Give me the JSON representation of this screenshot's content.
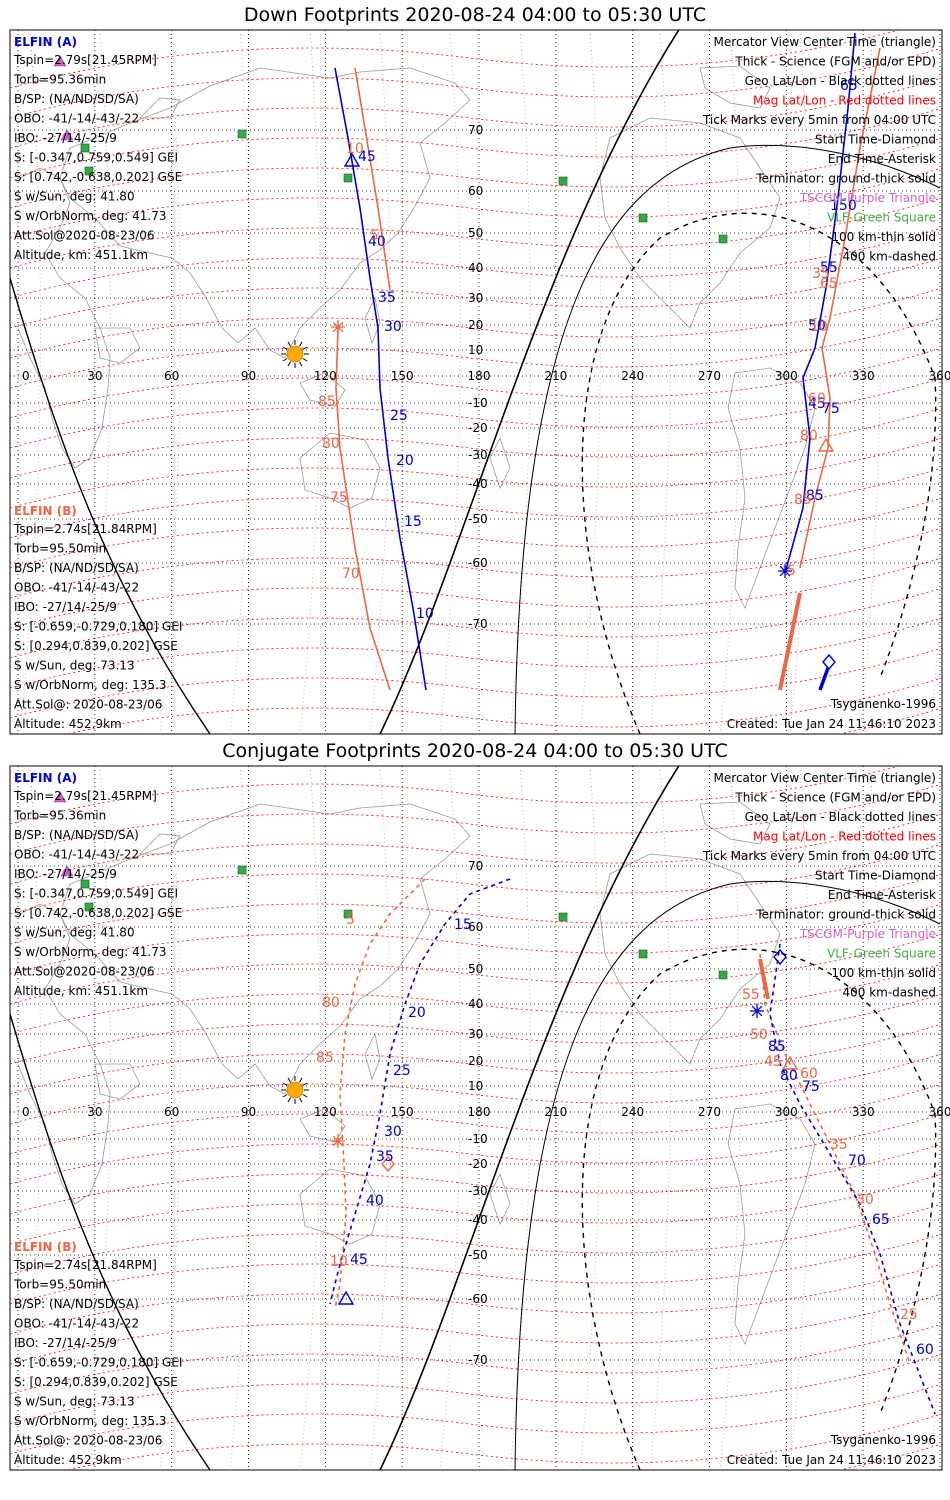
{
  "panels": [
    {
      "title": "Down Footprints 2020-08-24 04:00 to 05:30 UTC",
      "elfin_a": {
        "label": "ELFIN (A)",
        "lines": [
          "Tspin=2.79s[21.45RPM]",
          "Torb=95.36min",
          "B/SP: (NA/ND/SD/SA)",
          "OBO: -41/-14/-43/-22",
          "IBO: -27/14/-25/9",
          "S: [-0.347,0.759,0.549] GEI",
          "S: [0.742,-0.638,0.202] GSE",
          "S w/Sun, deg: 41.80",
          "S w/OrbNorm, deg: 41.73",
          "Att.Sol@2020-08-23/06",
          "Altitude, km: 451.1km"
        ]
      },
      "elfin_b": {
        "label": "ELFIN (B)",
        "lines": [
          "Tspin=2.74s[21.84RPM]",
          "Torb=95.50min",
          "B/SP: (NA/ND/SD/SA)",
          "OBO: -41/-14/-43/-22",
          "IBO: -27/14/-25/9",
          "S: [-0.659,-0.729,0.180] GEI",
          "S: [0.294,0.839,0.202] GSE",
          "S w/Sun, deg: 73.13",
          "S w/OrbNorm, deg: 135.3",
          "Att.Sol@: 2020-08-23/06",
          "Altitude: 452.9km"
        ]
      },
      "legend": [
        {
          "text": "Mercator View Center Time (triangle)",
          "color": "#000000"
        },
        {
          "text": "Thick - Science (FGM and/or EPD)",
          "color": "#000000"
        },
        {
          "text": "Geo Lat/Lon - Black dotted lines",
          "color": "#000000"
        },
        {
          "text": "Mag Lat/Lon - Red dotted lines",
          "color": "#ff0000"
        },
        {
          "text": "Tick Marks every 5min from 04:00 UTC",
          "color": "#000000"
        },
        {
          "text": "Start Time-Diamond",
          "color": "#000000"
        },
        {
          "text": "End Time-Asterisk",
          "color": "#000000"
        },
        {
          "text": "Terminator: ground-thick solid",
          "color": "#000000"
        },
        {
          "text": "TSCGM-Purple Triangle",
          "color": "#cc66cc"
        },
        {
          "text": "VLF-Green Square",
          "color": "#44aa44"
        },
        {
          "text": "100 km-thin solid",
          "color": "#000000"
        },
        {
          "text": "400 km-dashed",
          "color": "#000000"
        }
      ],
      "model": "Tsyganenko-1996",
      "created": "Created: Tue Jan 24 11:46:10 2023",
      "lon_ticks": [
        "0",
        "30",
        "60",
        "90",
        "120",
        "150",
        "180",
        "210",
        "240",
        "270",
        "300",
        "330",
        "360"
      ],
      "lat_ticks": [
        "70",
        "60",
        "50",
        "40",
        "30",
        "20",
        "10",
        "-10",
        "-20",
        "-30",
        "-40",
        "-50",
        "-60",
        "-70"
      ],
      "track_labels_blue": [
        "45",
        "40",
        "35",
        "30",
        "25",
        "20",
        "15",
        "10",
        "65",
        "150",
        "55",
        "50",
        "45",
        "75",
        "85"
      ],
      "track_labels_red": [
        "10",
        "5",
        "85",
        "80",
        "75",
        "70",
        "35",
        "65",
        "10",
        "60",
        "80",
        "85",
        "5"
      ]
    },
    {
      "title": "Conjugate Footprints 2020-08-24 04:00 to 05:30 UTC",
      "elfin_a": {
        "label": "ELFIN (A)",
        "lines": [
          "Tspin=2.79s[21.45RPM]",
          "Torb=95.36min",
          "B/SP: (NA/ND/SD/SA)",
          "OBO: -41/-14/-43/-22",
          "IBO: -27/14/-25/9",
          "S: [-0.347,0.759,0.549] GEI",
          "S: [0.742,-0.638,0.202] GSE",
          "S w/Sun, deg: 41.80",
          "S w/OrbNorm, deg: 41.73",
          "Att.Sol@2020-08-23/06",
          "Altitude, km: 451.1km"
        ]
      },
      "elfin_b": {
        "label": "ELFIN (B)",
        "lines": [
          "Tspin=2.74s[21.84RPM]",
          "Torb=95.50min",
          "B/SP: (NA/ND/SD/SA)",
          "OBO: -41/-14/-43/-22",
          "IBO: -27/14/-25/9",
          "S: [-0.659,-0.729,0.180] GEI",
          "S: [0.294,0.839,0.202] GSE",
          "S w/Sun, deg: 73.13",
          "S w/OrbNorm, deg: 135.3",
          "Att.Sol@: 2020-08-23/06",
          "Altitude: 452.9km"
        ]
      },
      "legend": [
        {
          "text": "Mercator View Center Time (triangle)",
          "color": "#000000"
        },
        {
          "text": "Thick - Science (FGM and/or EPD)",
          "color": "#000000"
        },
        {
          "text": "Geo Lat/Lon - Black dotted lines",
          "color": "#000000"
        },
        {
          "text": "Mag Lat/Lon - Red dotted lines",
          "color": "#ff0000"
        },
        {
          "text": "Tick Marks every 5min from 04:00 UTC",
          "color": "#000000"
        },
        {
          "text": "Start Time-Diamond",
          "color": "#000000"
        },
        {
          "text": "End Time-Asterisk",
          "color": "#000000"
        },
        {
          "text": "Terminator: ground-thick solid",
          "color": "#000000"
        },
        {
          "text": "TSCGM-Purple Triangle",
          "color": "#cc66cc"
        },
        {
          "text": "VLF-Green Square",
          "color": "#44aa44"
        },
        {
          "text": "100 km-thin solid",
          "color": "#000000"
        },
        {
          "text": "400 km-dashed",
          "color": "#000000"
        }
      ],
      "model": "Tsyganenko-1996",
      "created": "Created: Tue Jan 24 11:46:10 2023",
      "lon_ticks": [
        "0",
        "30",
        "60",
        "90",
        "120",
        "150",
        "180",
        "210",
        "240",
        "270",
        "300",
        "330",
        "360"
      ],
      "lat_ticks": [
        "70",
        "60",
        "50",
        "40",
        "30",
        "20",
        "10",
        "-10",
        "-20",
        "-30",
        "-40",
        "-50",
        "-60",
        "-70"
      ],
      "track_labels_blue": [
        "15",
        "20",
        "25",
        "30",
        "35",
        "40",
        "45",
        "85",
        "80",
        "75",
        "70",
        "65",
        "60"
      ],
      "track_labels_red": [
        "5",
        "80",
        "85",
        "10",
        "55",
        "50",
        "45",
        "60",
        "35",
        "30",
        "25"
      ]
    }
  ],
  "colors": {
    "elfin_a": "#0000cc",
    "elfin_b": "#ee6644",
    "geo_grid": "#000000",
    "mag_grid": "#ff0000",
    "coast": "#999999",
    "sun": "#ffaa00",
    "vlf": "#33aa44",
    "tscgm": "#cc66cc"
  },
  "markers": {
    "sun": "sun-icon",
    "start": "diamond",
    "end": "asterisk",
    "center": "triangle",
    "vlf": "square",
    "tscgm": "triangle"
  }
}
